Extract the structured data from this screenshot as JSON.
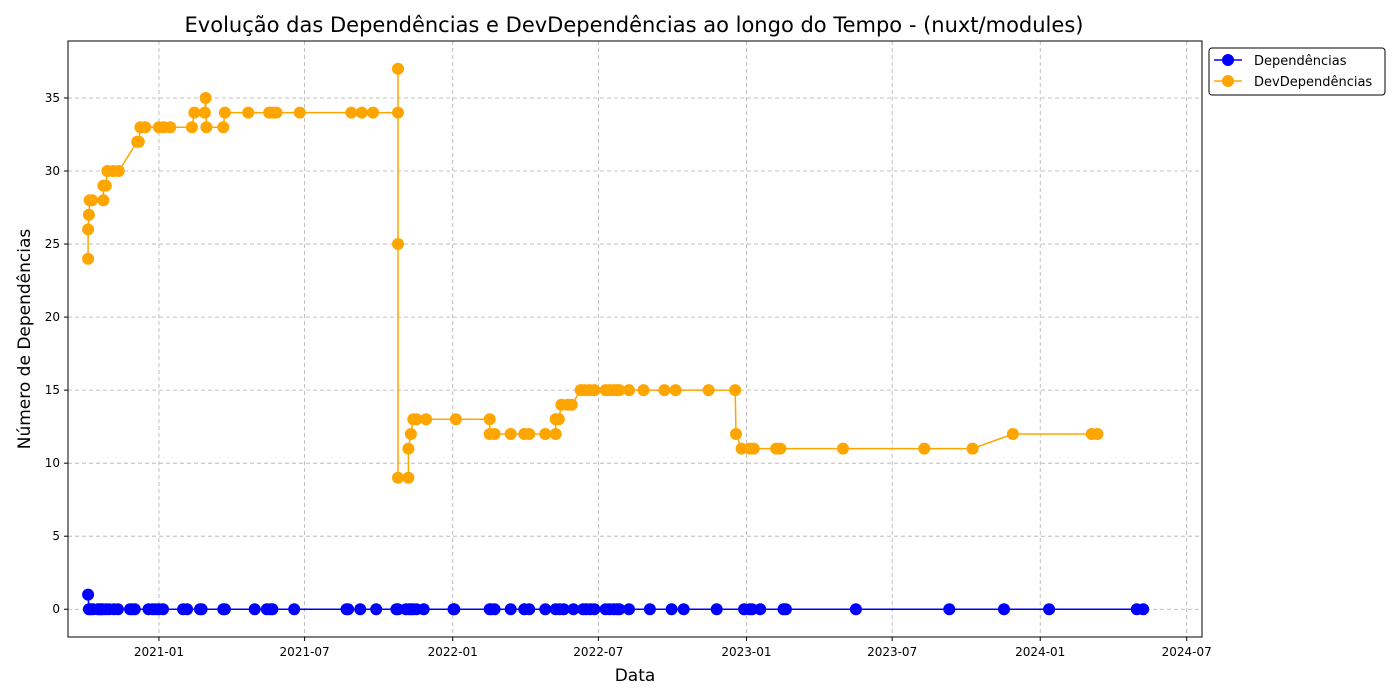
{
  "chart_data": {
    "type": "line",
    "title": "Evolução das Dependências e DevDependências ao longo do Tempo - (nuxt/modules)",
    "xlabel": "Data",
    "ylabel": "Número de Dependências",
    "xlim": [
      "2020-09-10",
      "2024-07-20"
    ],
    "ylim": [
      -1.9,
      38.9
    ],
    "x_ticks": [
      "2021-01-01",
      "2021-07-01",
      "2022-01-01",
      "2022-07-01",
      "2023-01-01",
      "2023-07-01",
      "2024-01-01",
      "2024-07-01"
    ],
    "x_tick_labels": [
      "2021-01",
      "2021-07",
      "2022-01",
      "2022-07",
      "2023-01",
      "2023-07",
      "2024-01",
      "2024-07"
    ],
    "y_ticks": [
      0,
      5,
      10,
      15,
      20,
      25,
      30,
      35
    ],
    "grid": true,
    "legend_position": "outside-top-right",
    "colors": {
      "dependencias": "#0000ff",
      "devdependencias": "#ffa500",
      "grid": "#b0b0b0"
    },
    "series": [
      {
        "name": "Dependências",
        "color": "#0000ff",
        "points": [
          [
            "2020-10-05",
            1
          ],
          [
            "2020-10-06",
            0
          ],
          [
            "2020-10-08",
            0
          ],
          [
            "2020-10-11",
            0
          ],
          [
            "2020-10-17",
            0
          ],
          [
            "2020-10-19",
            0
          ],
          [
            "2020-10-21",
            0
          ],
          [
            "2020-10-23",
            0
          ],
          [
            "2020-10-27",
            0
          ],
          [
            "2020-10-31",
            0
          ],
          [
            "2020-11-06",
            0
          ],
          [
            "2020-11-11",
            0
          ],
          [
            "2020-11-26",
            0
          ],
          [
            "2020-11-29",
            0
          ],
          [
            "2020-12-02",
            0
          ],
          [
            "2020-12-19",
            0
          ],
          [
            "2020-12-24",
            0
          ],
          [
            "2020-12-28",
            0
          ],
          [
            "2021-01-01",
            0
          ],
          [
            "2021-01-06",
            0
          ],
          [
            "2021-01-31",
            0
          ],
          [
            "2021-02-05",
            0
          ],
          [
            "2021-02-21",
            0
          ],
          [
            "2021-02-23",
            0
          ],
          [
            "2021-03-22",
            0
          ],
          [
            "2021-03-24",
            0
          ],
          [
            "2021-04-30",
            0
          ],
          [
            "2021-05-15",
            0
          ],
          [
            "2021-05-19",
            0
          ],
          [
            "2021-05-22",
            0
          ],
          [
            "2021-06-18",
            0
          ],
          [
            "2021-08-22",
            0
          ],
          [
            "2021-08-24",
            0
          ],
          [
            "2021-09-08",
            0
          ],
          [
            "2021-09-28",
            0
          ],
          [
            "2021-10-23",
            0
          ],
          [
            "2021-10-25",
            0
          ],
          [
            "2021-11-04",
            0
          ],
          [
            "2021-11-08",
            0
          ],
          [
            "2021-11-10",
            0
          ],
          [
            "2021-11-13",
            0
          ],
          [
            "2021-11-17",
            0
          ],
          [
            "2021-11-26",
            0
          ],
          [
            "2022-01-02",
            0
          ],
          [
            "2022-01-03",
            0
          ],
          [
            "2022-02-16",
            0
          ],
          [
            "2022-02-18",
            0
          ],
          [
            "2022-02-22",
            0
          ],
          [
            "2022-03-14",
            0
          ],
          [
            "2022-03-31",
            0
          ],
          [
            "2022-04-06",
            0
          ],
          [
            "2022-04-26",
            0
          ],
          [
            "2022-05-09",
            0
          ],
          [
            "2022-05-14",
            0
          ],
          [
            "2022-05-19",
            0
          ],
          [
            "2022-05-31",
            0
          ],
          [
            "2022-06-12",
            0
          ],
          [
            "2022-06-16",
            0
          ],
          [
            "2022-06-21",
            0
          ],
          [
            "2022-06-26",
            0
          ],
          [
            "2022-07-10",
            0
          ],
          [
            "2022-07-15",
            0
          ],
          [
            "2022-07-20",
            0
          ],
          [
            "2022-07-24",
            0
          ],
          [
            "2022-07-27",
            0
          ],
          [
            "2022-08-08",
            0
          ],
          [
            "2022-09-03",
            0
          ],
          [
            "2022-09-30",
            0
          ],
          [
            "2022-10-15",
            0
          ],
          [
            "2022-11-25",
            0
          ],
          [
            "2022-12-29",
            0
          ],
          [
            "2023-01-05",
            0
          ],
          [
            "2023-01-08",
            0
          ],
          [
            "2023-01-18",
            0
          ],
          [
            "2023-02-16",
            0
          ],
          [
            "2023-02-19",
            0
          ],
          [
            "2023-05-17",
            0
          ],
          [
            "2023-09-10",
            0
          ],
          [
            "2023-11-17",
            0
          ],
          [
            "2024-01-12",
            0
          ],
          [
            "2024-04-30",
            0
          ],
          [
            "2024-05-08",
            0
          ]
        ]
      },
      {
        "name": "DevDependências",
        "color": "#ffa500",
        "points": [
          [
            "2020-10-05",
            24
          ],
          [
            "2020-10-05",
            26
          ],
          [
            "2020-10-06",
            27
          ],
          [
            "2020-10-07",
            28
          ],
          [
            "2020-10-10",
            28
          ],
          [
            "2020-10-24",
            28
          ],
          [
            "2020-10-24",
            29
          ],
          [
            "2020-10-27",
            29
          ],
          [
            "2020-10-29",
            30
          ],
          [
            "2020-11-05",
            30
          ],
          [
            "2020-11-12",
            30
          ],
          [
            "2020-12-05",
            32
          ],
          [
            "2020-12-07",
            32
          ],
          [
            "2020-12-09",
            33
          ],
          [
            "2020-12-15",
            33
          ],
          [
            "2021-01-01",
            33
          ],
          [
            "2021-01-07",
            33
          ],
          [
            "2021-01-15",
            33
          ],
          [
            "2021-02-11",
            33
          ],
          [
            "2021-02-14",
            34
          ],
          [
            "2021-02-27",
            34
          ],
          [
            "2021-02-28",
            35
          ],
          [
            "2021-03-01",
            33
          ],
          [
            "2021-03-22",
            33
          ],
          [
            "2021-03-24",
            34
          ],
          [
            "2021-04-22",
            34
          ],
          [
            "2021-05-18",
            34
          ],
          [
            "2021-05-22",
            34
          ],
          [
            "2021-05-27",
            34
          ],
          [
            "2021-06-25",
            34
          ],
          [
            "2021-08-28",
            34
          ],
          [
            "2021-09-10",
            34
          ],
          [
            "2021-09-24",
            34
          ],
          [
            "2021-10-25",
            34
          ],
          [
            "2021-10-25",
            37
          ],
          [
            "2021-10-25",
            25
          ],
          [
            "2021-10-25",
            9
          ],
          [
            "2021-11-07",
            9
          ],
          [
            "2021-11-07",
            11
          ],
          [
            "2021-11-10",
            12
          ],
          [
            "2021-11-13",
            13
          ],
          [
            "2021-11-17",
            13
          ],
          [
            "2021-11-29",
            13
          ],
          [
            "2022-01-05",
            13
          ],
          [
            "2022-02-16",
            13
          ],
          [
            "2022-02-16",
            12
          ],
          [
            "2022-02-22",
            12
          ],
          [
            "2022-03-14",
            12
          ],
          [
            "2022-03-31",
            12
          ],
          [
            "2022-04-06",
            12
          ],
          [
            "2022-04-26",
            12
          ],
          [
            "2022-05-09",
            12
          ],
          [
            "2022-05-09",
            13
          ],
          [
            "2022-05-13",
            13
          ],
          [
            "2022-05-16",
            14
          ],
          [
            "2022-05-24",
            14
          ],
          [
            "2022-05-29",
            14
          ],
          [
            "2022-06-09",
            15
          ],
          [
            "2022-06-14",
            15
          ],
          [
            "2022-06-20",
            15
          ],
          [
            "2022-06-26",
            15
          ],
          [
            "2022-07-10",
            15
          ],
          [
            "2022-07-15",
            15
          ],
          [
            "2022-07-20",
            15
          ],
          [
            "2022-07-24",
            15
          ],
          [
            "2022-07-27",
            15
          ],
          [
            "2022-08-08",
            15
          ],
          [
            "2022-08-26",
            15
          ],
          [
            "2022-09-21",
            15
          ],
          [
            "2022-10-05",
            15
          ],
          [
            "2022-11-15",
            15
          ],
          [
            "2022-12-18",
            15
          ],
          [
            "2022-12-19",
            12
          ],
          [
            "2022-12-26",
            11
          ],
          [
            "2023-01-05",
            11
          ],
          [
            "2023-01-10",
            11
          ],
          [
            "2023-02-07",
            11
          ],
          [
            "2023-02-12",
            11
          ],
          [
            "2023-05-01",
            11
          ],
          [
            "2023-08-10",
            11
          ],
          [
            "2023-10-09",
            11
          ],
          [
            "2023-11-28",
            12
          ],
          [
            "2024-03-05",
            12
          ],
          [
            "2024-03-12",
            12
          ]
        ]
      }
    ]
  }
}
